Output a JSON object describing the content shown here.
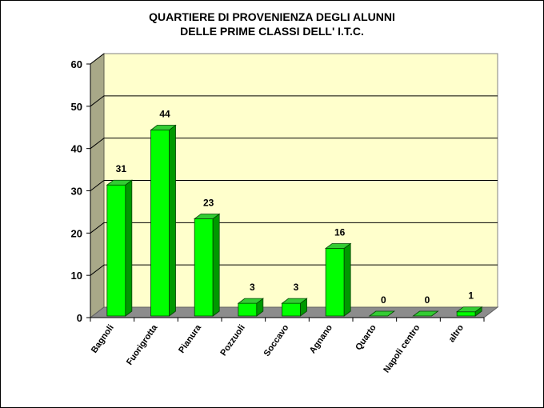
{
  "chart_data": {
    "type": "bar",
    "title": "QUARTIERE DI PROVENIENZA DEGLI ALUNNI DELLE PRIME CLASSI DELL' I.T.C.",
    "title_lines": [
      "QUARTIERE DI PROVENIENZA  DEGLI ALUNNI",
      "DELLE PRIME CLASSI  DELL' I.T.C."
    ],
    "categories": [
      "Bagnoli",
      "Fuorigrotta",
      "Pianura",
      "Pozzuoli",
      "Soccavo",
      "Agnano",
      "Quarto",
      "Napoli centro",
      "altro"
    ],
    "values": [
      31,
      44,
      23,
      3,
      3,
      16,
      0,
      0,
      1
    ],
    "xlabel": "",
    "ylabel": "",
    "ylim": [
      0,
      60
    ],
    "yticks": [
      0,
      10,
      20,
      30,
      40,
      50,
      60
    ],
    "grid": true,
    "legend": null,
    "style": "3d-column",
    "colors": {
      "bar_front": "#00ff00",
      "bar_side": "#009900",
      "bar_top": "#33cc33",
      "wall": "#ffffcc",
      "side_wall": "#a8a888",
      "floor": "#8c8c8c"
    }
  }
}
